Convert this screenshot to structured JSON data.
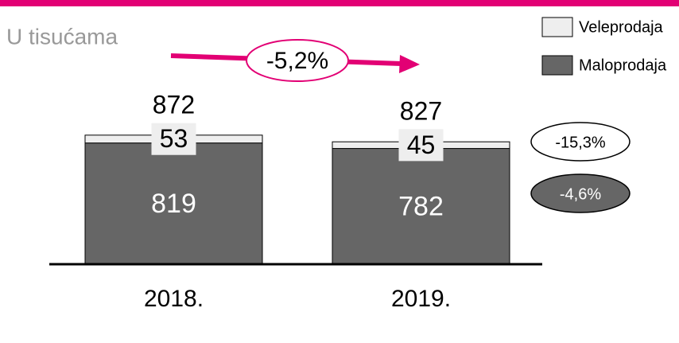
{
  "chart_data": {
    "type": "stacked_bar",
    "subtitle": "U tisućama",
    "categories": [
      "2018.",
      "2019."
    ],
    "series": [
      {
        "name": "Maloprodaja",
        "color": "#666666",
        "values": [
          819,
          782
        ]
      },
      {
        "name": "Veleprodaja",
        "color": "#eeeeee",
        "values": [
          53,
          45
        ]
      }
    ],
    "totals": [
      872,
      827
    ],
    "annotations": [
      "-5,2%",
      "-15,3%",
      "-4,6%"
    ]
  }
}
